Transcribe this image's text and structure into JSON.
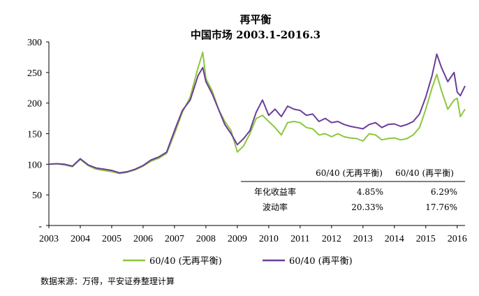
{
  "chart_data": {
    "type": "line",
    "title": "再平衡",
    "subtitle": "中国市场 2003.1-2016.3",
    "xlabel": "",
    "ylabel": "",
    "xlim": [
      2003.0,
      2016.25
    ],
    "ylim": [
      0,
      300
    ],
    "y_ticks": [
      {
        "value": 0,
        "label": "-"
      },
      {
        "value": 50,
        "label": "50"
      },
      {
        "value": 100,
        "label": "100"
      },
      {
        "value": 150,
        "label": "150"
      },
      {
        "value": 200,
        "label": "200"
      },
      {
        "value": 250,
        "label": "250"
      },
      {
        "value": 300,
        "label": "300"
      }
    ],
    "x_ticks": [
      "2003",
      "2004",
      "2005",
      "2006",
      "2007",
      "2008",
      "2009",
      "2010",
      "2011",
      "2012",
      "2013",
      "2014",
      "2015",
      "2016"
    ],
    "grid": false,
    "legend_position": "bottom",
    "series": [
      {
        "name": "60/40 (无再平衡)",
        "color": "#8dc63f",
        "x": [
          2003.0,
          2003.25,
          2003.5,
          2003.75,
          2004.0,
          2004.25,
          2004.5,
          2004.75,
          2005.0,
          2005.25,
          2005.5,
          2005.75,
          2006.0,
          2006.25,
          2006.5,
          2006.75,
          2007.0,
          2007.25,
          2007.5,
          2007.75,
          2007.9,
          2008.0,
          2008.2,
          2008.4,
          2008.6,
          2008.8,
          2009.0,
          2009.2,
          2009.4,
          2009.6,
          2009.8,
          2010.0,
          2010.2,
          2010.4,
          2010.6,
          2010.8,
          2011.0,
          2011.2,
          2011.4,
          2011.6,
          2011.8,
          2012.0,
          2012.2,
          2012.4,
          2012.6,
          2012.8,
          2013.0,
          2013.2,
          2013.4,
          2013.6,
          2013.8,
          2014.0,
          2014.2,
          2014.4,
          2014.6,
          2014.8,
          2015.0,
          2015.2,
          2015.35,
          2015.5,
          2015.7,
          2015.9,
          2016.0,
          2016.1,
          2016.25
        ],
        "values": [
          100,
          101,
          99,
          96,
          108,
          98,
          92,
          90,
          88,
          85,
          87,
          91,
          97,
          105,
          110,
          118,
          150,
          185,
          210,
          258,
          283,
          240,
          220,
          190,
          170,
          155,
          120,
          130,
          150,
          175,
          180,
          170,
          160,
          148,
          168,
          170,
          168,
          160,
          158,
          148,
          150,
          145,
          150,
          145,
          143,
          142,
          138,
          150,
          148,
          140,
          142,
          143,
          140,
          142,
          148,
          160,
          190,
          225,
          247,
          220,
          190,
          205,
          208,
          178,
          190
        ]
      },
      {
        "name": "60/40 (再平衡)",
        "color": "#6b3d9a",
        "x": [
          2003.0,
          2003.25,
          2003.5,
          2003.75,
          2004.0,
          2004.25,
          2004.5,
          2004.75,
          2005.0,
          2005.25,
          2005.5,
          2005.75,
          2006.0,
          2006.25,
          2006.5,
          2006.75,
          2007.0,
          2007.25,
          2007.5,
          2007.75,
          2007.9,
          2008.0,
          2008.2,
          2008.4,
          2008.6,
          2008.8,
          2009.0,
          2009.2,
          2009.4,
          2009.6,
          2009.8,
          2010.0,
          2010.2,
          2010.4,
          2010.6,
          2010.8,
          2011.0,
          2011.2,
          2011.4,
          2011.6,
          2011.8,
          2012.0,
          2012.2,
          2012.4,
          2012.6,
          2012.8,
          2013.0,
          2013.2,
          2013.4,
          2013.6,
          2013.8,
          2014.0,
          2014.2,
          2014.4,
          2014.6,
          2014.8,
          2015.0,
          2015.2,
          2015.35,
          2015.5,
          2015.7,
          2015.9,
          2016.0,
          2016.1,
          2016.25
        ],
        "values": [
          100,
          101,
          100,
          97,
          109,
          99,
          94,
          92,
          90,
          86,
          88,
          92,
          98,
          107,
          112,
          120,
          155,
          188,
          205,
          245,
          258,
          235,
          215,
          190,
          165,
          150,
          132,
          142,
          155,
          185,
          205,
          180,
          190,
          178,
          195,
          190,
          188,
          180,
          182,
          170,
          175,
          168,
          170,
          165,
          162,
          160,
          158,
          165,
          168,
          160,
          165,
          166,
          162,
          165,
          170,
          182,
          210,
          245,
          280,
          258,
          235,
          250,
          218,
          212,
          228
        ]
      }
    ],
    "annotations": {
      "table": {
        "col1": "60/40 (无再平衡)",
        "col2": "60/40 (再平衡)",
        "rows": [
          {
            "label": "年化收益率",
            "v1": "4.85%",
            "v2": "6.29%"
          },
          {
            "label": "波动率",
            "v1": "20.33%",
            "v2": "17.76%"
          }
        ]
      }
    }
  },
  "source": "数据来源：万得，平安证券整理计算"
}
